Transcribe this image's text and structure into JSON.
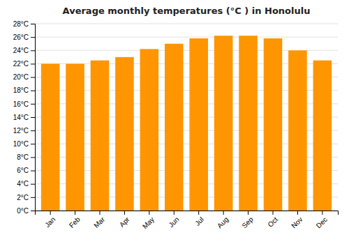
{
  "chart_data": {
    "type": "bar",
    "title": "Average monthly temperatures (°C ) in Honolulu",
    "categories": [
      "Jan",
      "Feb",
      "Mar",
      "Apr",
      "May",
      "Jun",
      "Jul",
      "Aug",
      "Sep",
      "Oct",
      "Nov",
      "Dec"
    ],
    "values": [
      22.0,
      22.0,
      22.5,
      23.0,
      24.2,
      25.0,
      25.8,
      26.2,
      26.2,
      25.8,
      24.0,
      22.5
    ],
    "color": "#FF9500",
    "ylim": [
      0,
      28
    ],
    "yticks": [
      {
        "value": 0,
        "label": "0°C"
      },
      {
        "value": 2,
        "label": "2°C"
      },
      {
        "value": 4,
        "label": "4°C"
      },
      {
        "value": 6,
        "label": "6°C"
      },
      {
        "value": 8,
        "label": "8°C"
      },
      {
        "value": 10,
        "label": "10°C"
      },
      {
        "value": 12,
        "label": "12°C"
      },
      {
        "value": 14,
        "label": "14°C"
      },
      {
        "value": 16,
        "label": "16°C"
      },
      {
        "value": 18,
        "label": "18°C"
      },
      {
        "value": 20,
        "label": "20°C"
      },
      {
        "value": 22,
        "label": "22°C"
      },
      {
        "value": 24,
        "label": "24°C"
      },
      {
        "value": 26,
        "label": "26°C"
      },
      {
        "value": 28,
        "label": "28°C"
      }
    ],
    "grid": true
  }
}
